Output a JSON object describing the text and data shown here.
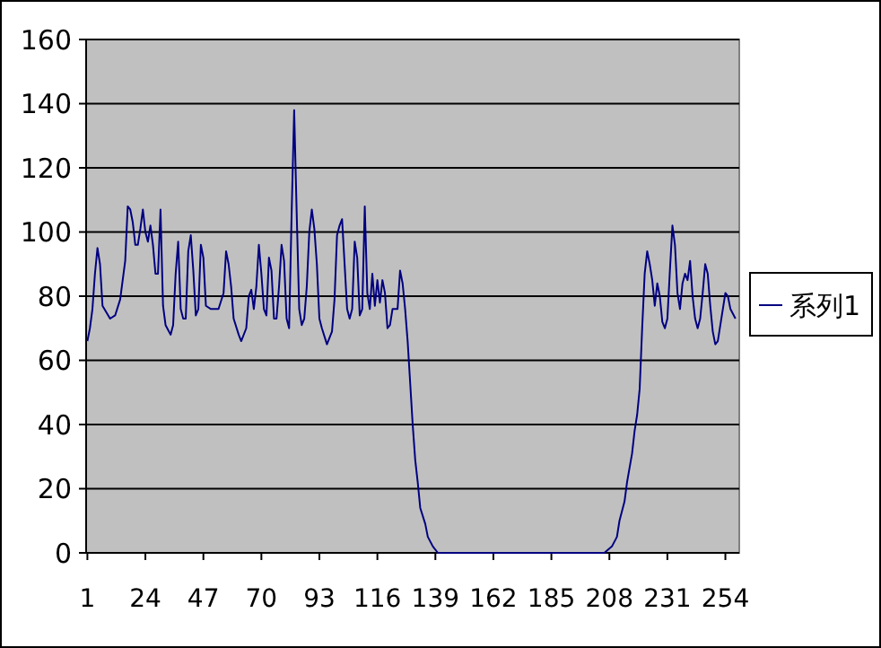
{
  "chart_data": {
    "type": "line",
    "xlim": [
      0.5,
      259.5
    ],
    "xticks": [
      1,
      24,
      47,
      70,
      93,
      116,
      139,
      162,
      185,
      208,
      231,
      254
    ],
    "ylim": [
      0,
      160
    ],
    "yticks": [
      0,
      20,
      40,
      60,
      80,
      100,
      120,
      140,
      160
    ],
    "grid": "y",
    "legend": "right",
    "marker": "none",
    "line_style": "solid",
    "series": [
      {
        "name": "系列1",
        "color": "#000080",
        "x": [
          1,
          2,
          3,
          4,
          5,
          6,
          7,
          10,
          12,
          14,
          16,
          17,
          18,
          19,
          20,
          21,
          22,
          23,
          24,
          25,
          26,
          27,
          28,
          29,
          30,
          31,
          32,
          34,
          35,
          36,
          37,
          38,
          39,
          40,
          41,
          42,
          43,
          44,
          45,
          46,
          47,
          48,
          50,
          53,
          55,
          56,
          57,
          58,
          59,
          61,
          62,
          64,
          65,
          66,
          67,
          68,
          69,
          70,
          71,
          72,
          73,
          74,
          75,
          76,
          77,
          78,
          79,
          80,
          81,
          82,
          83,
          84,
          85,
          86,
          87,
          88,
          89,
          90,
          91,
          92,
          93,
          94,
          96,
          98,
          99,
          100,
          101,
          102,
          103,
          104,
          105,
          106,
          107,
          108,
          109,
          110,
          111,
          112,
          113,
          114,
          115,
          116,
          117,
          118,
          119,
          120,
          121,
          122,
          124,
          125,
          126,
          127,
          128,
          129,
          130,
          131,
          132,
          133,
          135,
          136,
          138,
          140,
          206,
          209,
          211,
          212,
          214,
          215,
          217,
          218,
          219,
          220,
          221,
          222,
          223,
          224,
          225,
          226,
          227,
          228,
          229,
          230,
          231,
          232,
          233,
          234,
          235,
          236,
          237,
          238,
          239,
          240,
          241,
          242,
          243,
          244,
          245,
          246,
          247,
          248,
          249,
          250,
          251,
          252,
          253,
          254,
          255,
          256,
          258
        ],
        "values": [
          66,
          70,
          76,
          87,
          95,
          90,
          77,
          73,
          74,
          79,
          91,
          108,
          107,
          103,
          96,
          96,
          101,
          107,
          100,
          97,
          102,
          96,
          87,
          87,
          107,
          77,
          71,
          68,
          71,
          87,
          97,
          76,
          73,
          73,
          94,
          99,
          88,
          74,
          76,
          96,
          92,
          77,
          76,
          76,
          81,
          94,
          90,
          83,
          73,
          68,
          66,
          70,
          80,
          82,
          76,
          83,
          96,
          87,
          76,
          74,
          92,
          88,
          73,
          73,
          83,
          96,
          91,
          73,
          70,
          106,
          138,
          106,
          76,
          71,
          73,
          83,
          100,
          107,
          101,
          90,
          73,
          70,
          65,
          69,
          79,
          99,
          102,
          104,
          90,
          76,
          73,
          76,
          97,
          92,
          74,
          76,
          108,
          81,
          76,
          87,
          77,
          85,
          78,
          85,
          81,
          70,
          71,
          76,
          76,
          88,
          84,
          76,
          66,
          53,
          40,
          29,
          22,
          14,
          9,
          5,
          2,
          0,
          0,
          2,
          5,
          10,
          16,
          22,
          31,
          38,
          43,
          51,
          70,
          87,
          94,
          90,
          85,
          77,
          84,
          80,
          72,
          70,
          73,
          88,
          102,
          96,
          81,
          76,
          84,
          87,
          85,
          91,
          80,
          73,
          70,
          73,
          81,
          90,
          87,
          77,
          69,
          65,
          66,
          71,
          76,
          81,
          80,
          76,
          73
        ]
      }
    ]
  }
}
